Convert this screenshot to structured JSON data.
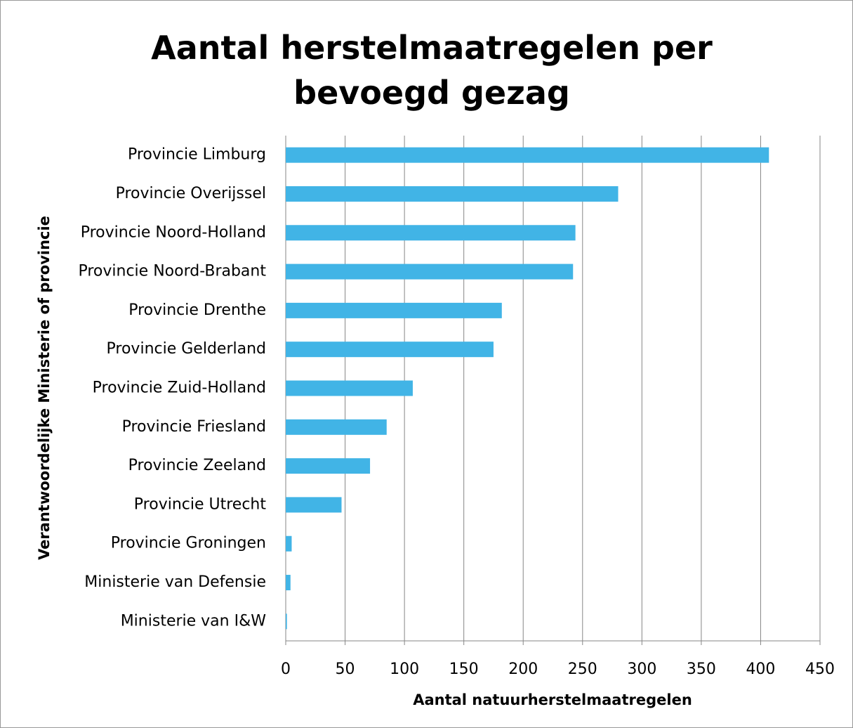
{
  "chart_data": {
    "type": "bar",
    "orientation": "horizontal",
    "title": "Aantal herstelmaatregelen per bevoegd gezag",
    "x_label": "Aantal natuurherstelmaatregelen",
    "y_label": "Verantwoordelijke Ministerie of provincie",
    "categories": [
      "Provincie Limburg",
      "Provincie Overijssel",
      "Provincie Noord-Holland",
      "Provincie Noord-Brabant",
      "Provincie Drenthe",
      "Provincie Gelderland",
      "Provincie Zuid-Holland",
      "Provincie Friesland",
      "Provincie Zeeland",
      "Provincie Utrecht",
      "Provincie Groningen",
      "Ministerie van Defensie",
      "Ministerie van I&W"
    ],
    "values": [
      407,
      280,
      244,
      242,
      182,
      175,
      107,
      85,
      71,
      47,
      5,
      4,
      1
    ],
    "color": "#41b4e6",
    "xlim": [
      0,
      450
    ],
    "xticks": [
      0,
      50,
      100,
      150,
      200,
      250,
      300,
      350,
      400,
      450
    ],
    "grid": true
  }
}
